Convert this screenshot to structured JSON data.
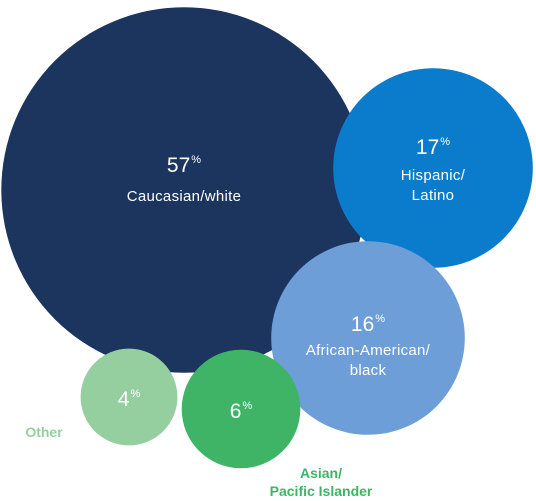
{
  "chart_data": {
    "type": "bubble",
    "series": [
      {
        "label": [
          "Caucasian/white"
        ],
        "value": 57,
        "display": "57",
        "suffix": "%",
        "color": "#1b355e"
      },
      {
        "label": [
          "Hispanic/",
          "Latino"
        ],
        "value": 17,
        "display": "17",
        "suffix": "%",
        "color": "#0b7ccc"
      },
      {
        "label": [
          "African-American/",
          "black"
        ],
        "value": 16,
        "display": "16",
        "suffix": "%",
        "color": "#6d9ed8"
      },
      {
        "label": [
          "Other"
        ],
        "value": 4,
        "display": "4",
        "suffix": "%",
        "color": "#95cf9f"
      },
      {
        "label": [
          "Asian/",
          "Pacific Islander"
        ],
        "value": 6,
        "display": "6",
        "suffix": "%",
        "color": "#3fb466"
      }
    ],
    "colors": {
      "other_label": "#95cf9f",
      "asian_label": "#3fb466"
    }
  }
}
